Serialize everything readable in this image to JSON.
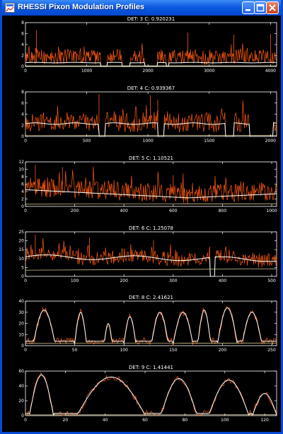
{
  "window": {
    "title": "RHESSI Pixon Modulation Profiles",
    "titlebar_color": "#0a5ae0",
    "buttons": {
      "minimize": "minimize-icon",
      "maximize": "maximize-icon",
      "close": "close-icon"
    }
  },
  "colors": {
    "data": "#ff5a10",
    "model": "#ffffff",
    "background": "#f0e0a0",
    "axes": "#ffffff"
  },
  "chart_data": [
    {
      "type": "line",
      "title": "DET: 3 C: 0.920231",
      "xlim": [
        0,
        4100
      ],
      "ylim": [
        0,
        8
      ],
      "xticks": [
        0,
        1000,
        2000,
        3000,
        4000
      ],
      "yticks": [
        0,
        2,
        4,
        6,
        8
      ],
      "profile": "flat",
      "n": 420,
      "data_mean": 1.6,
      "data_noise": 1.4,
      "model_mean": 0.7,
      "spikes": [
        {
          "x": 180,
          "y": 6.6
        },
        {
          "x": 2650,
          "y": 6.2
        },
        {
          "x": 3400,
          "y": 5.8
        },
        {
          "x": 4000,
          "y": 6.0
        }
      ],
      "gaps": [
        [
          1230,
          1330
        ],
        [
          1580,
          1700
        ],
        [
          1950,
          2150
        ],
        [
          2300,
          2340
        ]
      ],
      "background_level": 0.1
    },
    {
      "type": "line",
      "title": "DET: 4 C: 0.939367",
      "xlim": [
        0,
        2050
      ],
      "ylim": [
        0,
        8
      ],
      "xticks": [
        0,
        500,
        1000,
        1500,
        2000
      ],
      "yticks": [
        0,
        2,
        4,
        6,
        8
      ],
      "profile": "flat",
      "n": 320,
      "data_mean": 2.4,
      "data_noise": 1.8,
      "model_mean": 2.3,
      "spikes": [
        {
          "x": 600,
          "y": 7.6
        },
        {
          "x": 1020,
          "y": 7.4
        },
        {
          "x": 1080,
          "y": 6.6
        }
      ],
      "gaps": [
        [
          600,
          650
        ],
        [
          1080,
          1130
        ],
        [
          1630,
          1700
        ],
        [
          1830,
          2020
        ]
      ],
      "background_level": 0.15
    },
    {
      "type": "line",
      "title": "DET: 5 C: 1.10521",
      "xlim": [
        0,
        1020
      ],
      "ylim": [
        0,
        12
      ],
      "xticks": [
        0,
        200,
        400,
        600,
        800,
        1000
      ],
      "yticks": [
        0,
        2,
        4,
        6,
        8,
        10,
        12
      ],
      "profile": "decay",
      "n": 400,
      "data_mean": 5.0,
      "data_noise": 2.6,
      "model_mean": 4.5,
      "model_end": 2.3,
      "model_rise": 3.4,
      "spikes": [
        {
          "x": 40,
          "y": 11.2
        },
        {
          "x": 150,
          "y": 10.6
        },
        {
          "x": 600,
          "y": 8.4
        }
      ],
      "gaps": [],
      "background_level": 0.6
    },
    {
      "type": "line",
      "title": "DET: 6 C: 1.25078",
      "xlim": [
        0,
        510
      ],
      "ylim": [
        0,
        25
      ],
      "xticks": [
        0,
        100,
        200,
        300,
        400,
        500
      ],
      "yticks": [
        0,
        5,
        10,
        15,
        20,
        25
      ],
      "profile": "wavy",
      "n": 360,
      "data_mean": 11,
      "data_noise": 4,
      "model_mean": 11,
      "spikes": [
        {
          "x": 20,
          "y": 23.5
        },
        {
          "x": 130,
          "y": 21.8
        },
        {
          "x": 260,
          "y": 20.5
        }
      ],
      "gaps": [
        [
          375,
          385
        ]
      ],
      "background_level": 3.5
    },
    {
      "type": "line",
      "title": "DET: 8 C: 2.41621",
      "xlim": [
        0,
        255
      ],
      "ylim": [
        0,
        40
      ],
      "xticks": [
        0,
        50,
        100,
        150,
        200,
        250
      ],
      "yticks": [
        0,
        10,
        20,
        30,
        40
      ],
      "profile": "humps",
      "n": 260,
      "data_mean": 22,
      "data_noise": 3,
      "model_mean": 22,
      "humps": [
        [
          8,
          30,
          32
        ],
        [
          50,
          62,
          30
        ],
        [
          80,
          88,
          20
        ],
        [
          100,
          112,
          26
        ],
        [
          128,
          145,
          30
        ],
        [
          150,
          170,
          30
        ],
        [
          175,
          188,
          32
        ],
        [
          195,
          215,
          34
        ],
        [
          220,
          240,
          30
        ]
      ],
      "spikes": [],
      "gaps": [],
      "background_level": 2
    },
    {
      "type": "line",
      "title": "DET: 9 C: 1.41441",
      "xlim": [
        0,
        126
      ],
      "ylim": [
        0,
        60
      ],
      "xticks": [
        0,
        20,
        40,
        60,
        80,
        100,
        120
      ],
      "yticks": [
        0,
        20,
        40,
        60
      ],
      "profile": "arches",
      "n": 180,
      "data_mean": 30,
      "data_noise": 4,
      "model_mean": 30,
      "humps": [
        [
          2,
          14,
          55
        ],
        [
          26,
          60,
          52
        ],
        [
          68,
          86,
          50
        ],
        [
          92,
          112,
          48
        ],
        [
          114,
          126,
          30
        ]
      ],
      "spikes": [],
      "gaps": [],
      "background_level": 1
    }
  ]
}
